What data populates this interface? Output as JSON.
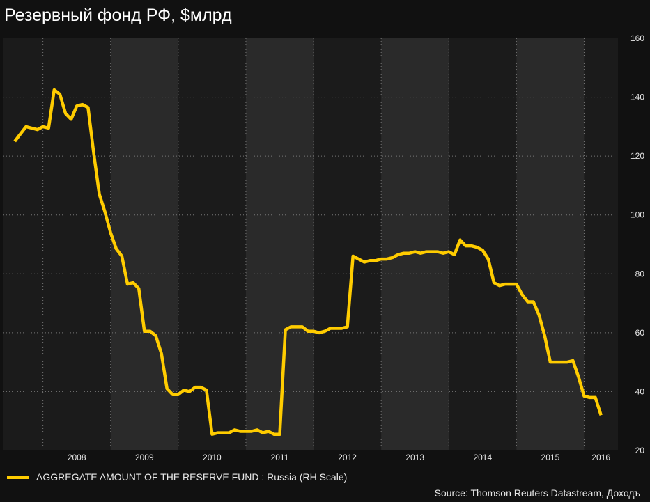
{
  "title": "Резервный фонд РФ, $млрд",
  "source": "Source: Thomson Reuters Datastream, Доходъ",
  "colors": {
    "line": "#ffcc00",
    "background": "#111111",
    "band_dark": "#1b1b1b",
    "band_light": "#2a2a2a",
    "grid": "#777777",
    "text": "#e8e8e8"
  },
  "chart_data": {
    "type": "line",
    "title": "Резервный фонд РФ, $млрд",
    "y_axis_position": "right",
    "ylim": [
      20,
      160
    ],
    "yticks": [
      20,
      40,
      60,
      80,
      100,
      120,
      140,
      160
    ],
    "xlim": [
      "2007-06",
      "2016-07"
    ],
    "xticks": [
      "2008",
      "2009",
      "2010",
      "2011",
      "2012",
      "2013",
      "2014",
      "2015",
      "2016"
    ],
    "grid": true,
    "legend": "bottom-left",
    "series": [
      {
        "name": "AGGREGATE AMOUNT OF THE RESERVE FUND : Russia (RH Scale)",
        "points": [
          [
            "2007-08",
            125
          ],
          [
            "2007-09",
            127.5
          ],
          [
            "2007-10",
            130
          ],
          [
            "2007-11",
            129.5
          ],
          [
            "2007-12",
            129
          ],
          [
            "2008-01",
            130
          ],
          [
            "2008-02",
            129.5
          ],
          [
            "2008-03",
            142.5
          ],
          [
            "2008-04",
            141
          ],
          [
            "2008-05",
            134.5
          ],
          [
            "2008-06",
            132.5
          ],
          [
            "2008-07",
            137
          ],
          [
            "2008-08",
            137.5
          ],
          [
            "2008-09",
            136.5
          ],
          [
            "2008-10",
            121
          ],
          [
            "2008-11",
            107
          ],
          [
            "2008-12",
            101
          ],
          [
            "2009-01",
            94
          ],
          [
            "2009-02",
            88.5
          ],
          [
            "2009-03",
            86
          ],
          [
            "2009-04",
            76.5
          ],
          [
            "2009-05",
            77
          ],
          [
            "2009-06",
            75
          ],
          [
            "2009-07",
            60.5
          ],
          [
            "2009-08",
            60.5
          ],
          [
            "2009-09",
            59
          ],
          [
            "2009-10",
            53
          ],
          [
            "2009-11",
            41
          ],
          [
            "2009-12",
            39
          ],
          [
            "2010-01",
            39
          ],
          [
            "2010-02",
            40.5
          ],
          [
            "2010-03",
            40
          ],
          [
            "2010-04",
            41.5
          ],
          [
            "2010-05",
            41.5
          ],
          [
            "2010-06",
            40.5
          ],
          [
            "2010-07",
            25.5
          ],
          [
            "2010-08",
            26
          ],
          [
            "2010-09",
            26
          ],
          [
            "2010-10",
            26
          ],
          [
            "2010-11",
            27
          ],
          [
            "2010-12",
            26.5
          ],
          [
            "2011-01",
            26.5
          ],
          [
            "2011-02",
            26.5
          ],
          [
            "2011-03",
            27
          ],
          [
            "2011-04",
            26
          ],
          [
            "2011-05",
            26.5
          ],
          [
            "2011-06",
            25.5
          ],
          [
            "2011-07",
            25.5
          ],
          [
            "2011-08",
            61
          ],
          [
            "2011-09",
            62
          ],
          [
            "2011-10",
            62
          ],
          [
            "2011-11",
            62
          ],
          [
            "2011-12",
            60.5
          ],
          [
            "2012-01",
            60.5
          ],
          [
            "2012-02",
            60
          ],
          [
            "2012-03",
            60.5
          ],
          [
            "2012-04",
            61.5
          ],
          [
            "2012-05",
            61.5
          ],
          [
            "2012-06",
            61.5
          ],
          [
            "2012-07",
            62
          ],
          [
            "2012-08",
            86
          ],
          [
            "2012-09",
            85
          ],
          [
            "2012-10",
            84
          ],
          [
            "2012-11",
            84.5
          ],
          [
            "2012-12",
            84.5
          ],
          [
            "2013-01",
            85
          ],
          [
            "2013-02",
            85
          ],
          [
            "2013-03",
            85.5
          ],
          [
            "2013-04",
            86.5
          ],
          [
            "2013-05",
            87
          ],
          [
            "2013-06",
            87
          ],
          [
            "2013-07",
            87.5
          ],
          [
            "2013-08",
            87
          ],
          [
            "2013-09",
            87.5
          ],
          [
            "2013-10",
            87.5
          ],
          [
            "2013-11",
            87.5
          ],
          [
            "2013-12",
            87
          ],
          [
            "2014-01",
            87.5
          ],
          [
            "2014-02",
            86.5
          ],
          [
            "2014-03",
            91.5
          ],
          [
            "2014-04",
            89.5
          ],
          [
            "2014-05",
            89.5
          ],
          [
            "2014-06",
            89
          ],
          [
            "2014-07",
            88
          ],
          [
            "2014-08",
            85
          ],
          [
            "2014-09",
            77
          ],
          [
            "2014-10",
            76
          ],
          [
            "2014-11",
            76.5
          ],
          [
            "2014-12",
            76.5
          ],
          [
            "2015-01",
            76.5
          ],
          [
            "2015-02",
            73
          ],
          [
            "2015-03",
            70.5
          ],
          [
            "2015-04",
            70.5
          ],
          [
            "2015-05",
            66
          ],
          [
            "2015-06",
            59
          ],
          [
            "2015-07",
            50
          ],
          [
            "2015-08",
            50
          ],
          [
            "2015-09",
            50
          ],
          [
            "2015-10",
            50
          ],
          [
            "2015-11",
            50.5
          ],
          [
            "2015-12",
            45
          ],
          [
            "2016-01",
            38.5
          ],
          [
            "2016-02",
            38
          ],
          [
            "2016-03",
            38
          ],
          [
            "2016-04",
            32
          ]
        ]
      }
    ]
  }
}
